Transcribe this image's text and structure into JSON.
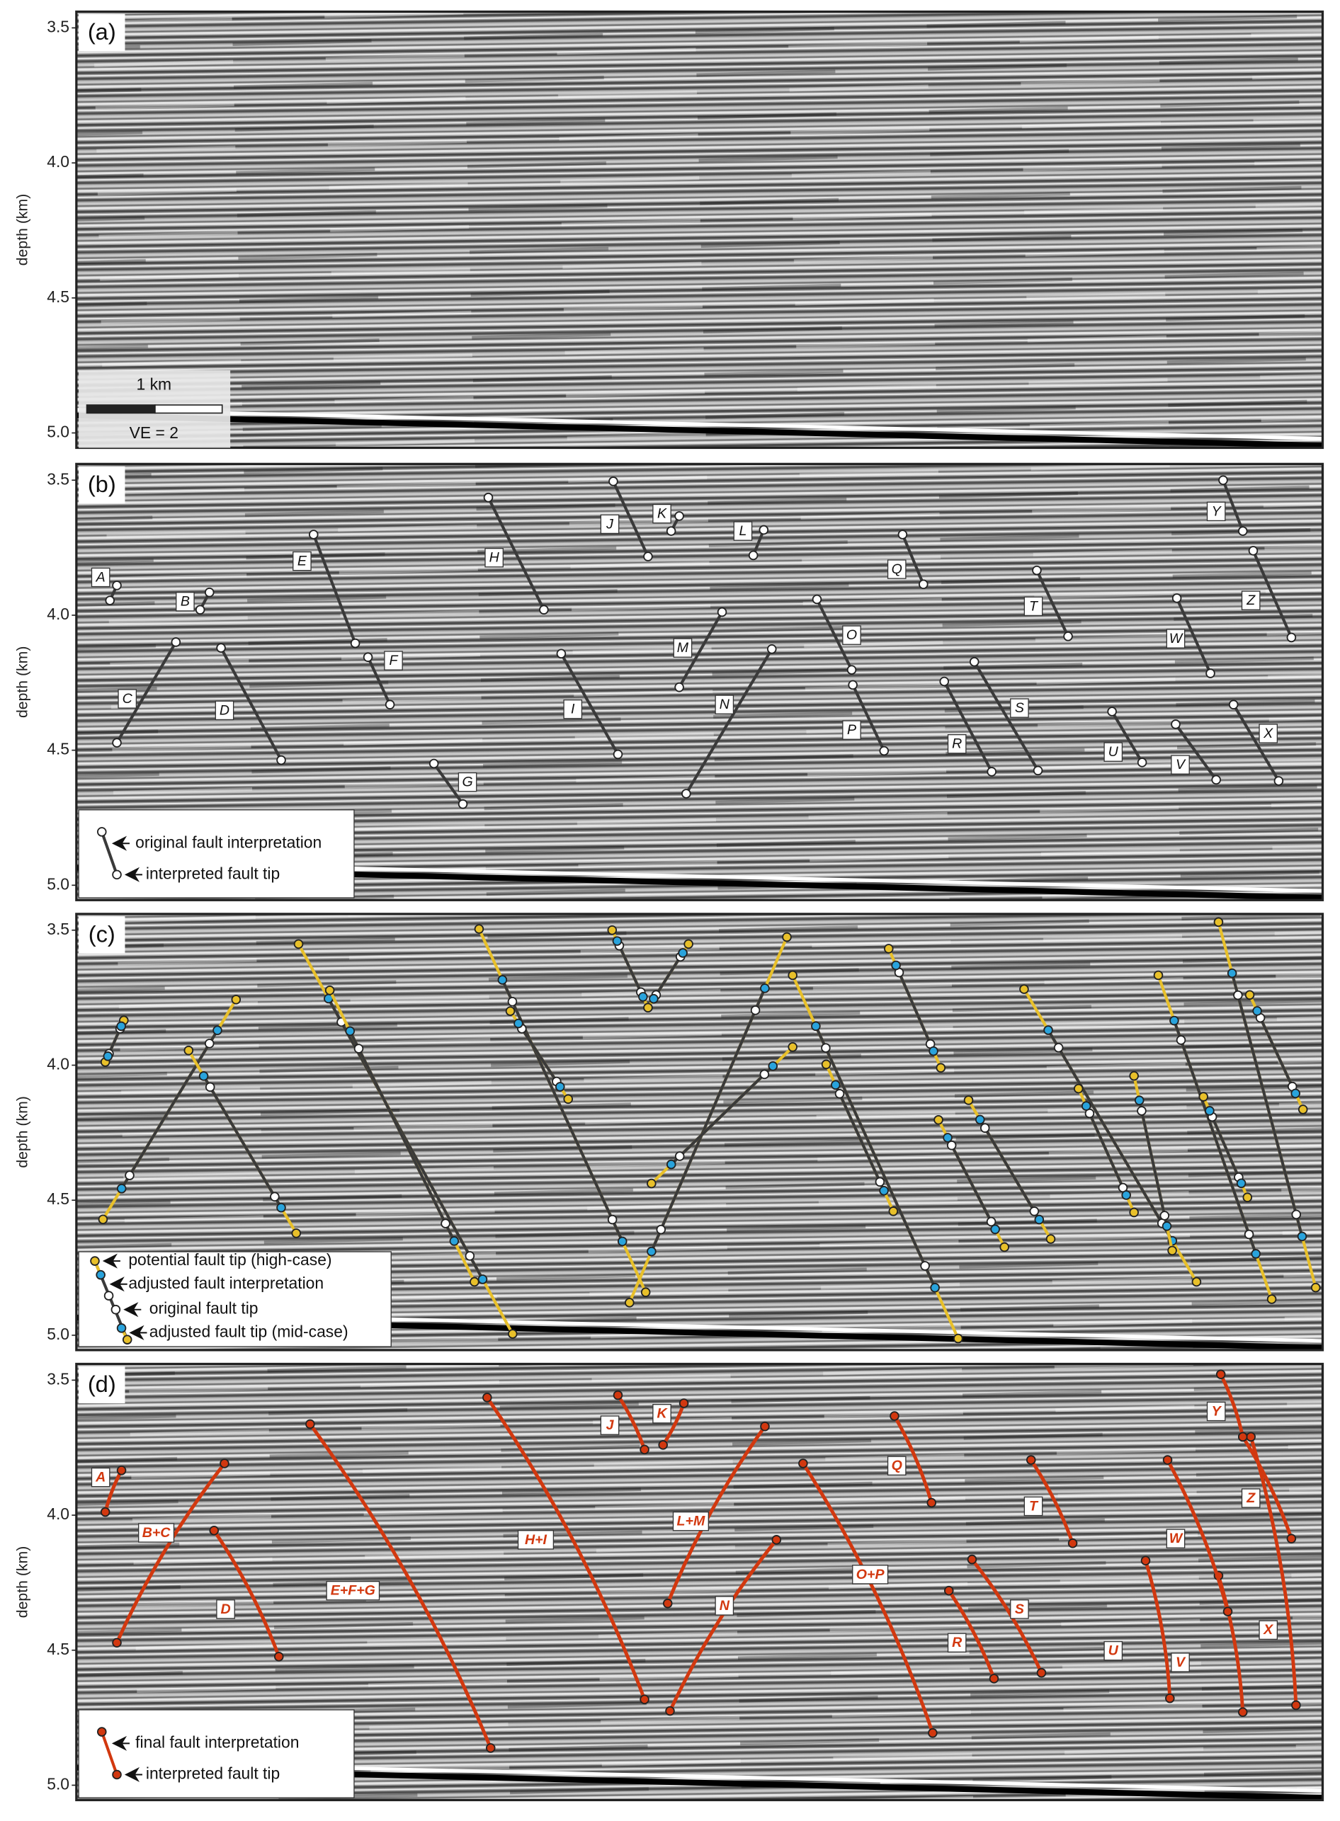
{
  "chart_data": [
    {
      "type": "seismic-section",
      "panel_label": "(a)",
      "y_axis_label": "depth (km)",
      "ylim": [
        3.44,
        5.055
      ],
      "yticks": [
        {
          "value": 3.5,
          "label": "3.5"
        },
        {
          "value": 4.0,
          "label": "4.0"
        },
        4.5,
        {
          "value": 5.0,
          "label": "5.0"
        }
      ],
      "scale_bar": {
        "length": "1 km",
        "exaggeration": "VE = 2"
      }
    },
    {
      "type": "seismic-section",
      "panel_label": "(b)",
      "y_axis_label": "depth (km)",
      "ylim": [
        3.44,
        5.055
      ],
      "yticks": [
        {
          "value": 3.5,
          "label": "3.5"
        },
        {
          "value": 4.0,
          "label": "4.0"
        },
        4.5,
        {
          "value": 5.0,
          "label": "5.0"
        }
      ],
      "fault_labels": [
        "A",
        "B",
        "C",
        "D",
        "E",
        "F",
        "G",
        "H",
        "I",
        "J",
        "K",
        "L",
        "M",
        "N",
        "O",
        "P",
        "Q",
        "R",
        "S",
        "T",
        "U",
        "V",
        "W",
        "X",
        "Y",
        "Z"
      ],
      "legend": [
        "original fault interpretation",
        "interpreted fault tip"
      ]
    },
    {
      "type": "seismic-section",
      "panel_label": "(c)",
      "y_axis_label": "depth (km)",
      "ylim": [
        3.44,
        5.055
      ],
      "yticks": [
        {
          "value": 3.5,
          "label": "3.5"
        },
        {
          "value": 4.0,
          "label": "4.0"
        },
        4.5,
        {
          "value": 5.0,
          "label": "5.0"
        }
      ],
      "legend": [
        "potential fault tip (high-case)",
        "adjusted fault interpretation",
        "original fault tip",
        "adjusted fault tip (mid-case)"
      ]
    },
    {
      "type": "seismic-section",
      "panel_label": "(d)",
      "y_axis_label": "depth (km)",
      "ylim": [
        3.44,
        5.055
      ],
      "yticks": [
        {
          "value": 3.5,
          "label": "3.5"
        },
        {
          "value": 4.0,
          "label": "4.0"
        },
        4.5,
        {
          "value": 5.0,
          "label": "5.0"
        }
      ],
      "fault_labels": [
        "A",
        "B+C",
        "D",
        "E+F+G",
        "H+I",
        "J",
        "K",
        "L+M",
        "N",
        "O+P",
        "Q",
        "R",
        "S",
        "T",
        "U",
        "V",
        "W",
        "X",
        "Y",
        "Z"
      ],
      "legend": [
        "final fault interpretation",
        "interpreted fault tip"
      ]
    }
  ]
}
